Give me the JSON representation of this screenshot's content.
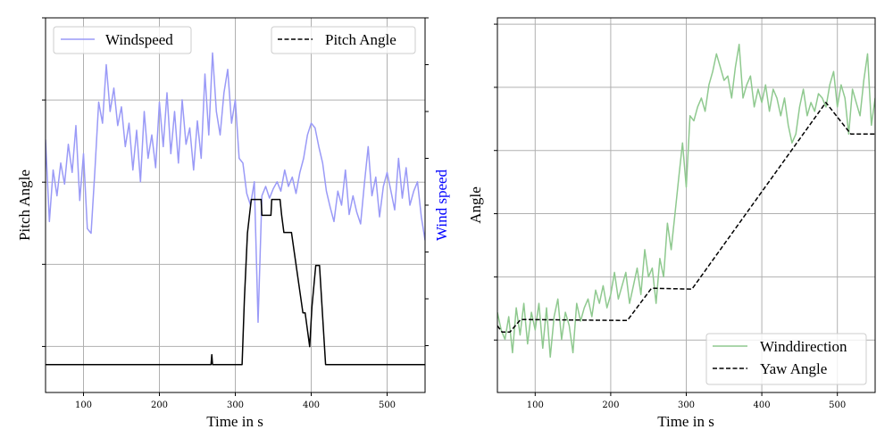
{
  "chart_data": [
    {
      "type": "line",
      "xlabel": "Time in s",
      "ylabel": "Pitch Angle",
      "ylabel_right": "Wind speed",
      "xlim": [
        50,
        550
      ],
      "xticks": [
        100,
        200,
        300,
        400,
        500
      ],
      "grid": true,
      "pitch_axis": {
        "ylim": [
          -1.7,
          21.1
        ],
        "ticks": [
          1.1,
          6.1,
          11.1,
          16.1,
          21.1
        ]
      },
      "wind_axis": {
        "ylim": [
          0,
          16
        ],
        "ticks": [
          2,
          4,
          6,
          8,
          10,
          12,
          14,
          16
        ]
      },
      "legend": [
        {
          "label": "Windspeed",
          "placement": "top-left"
        },
        {
          "label": "Pitch Angle",
          "placement": "top-right"
        }
      ],
      "series": [
        {
          "name": "Windspeed",
          "axis": "right",
          "color": "#9a9af7",
          "style": "solid",
          "x_start": 50,
          "x_step": 5,
          "values": [
            10.8,
            7.3,
            9.5,
            8.4,
            9.8,
            8.9,
            10.6,
            9.4,
            11.4,
            8.2,
            10.2,
            7.0,
            6.8,
            9.5,
            12.4,
            11.5,
            14.0,
            12.0,
            13.0,
            11.4,
            12.2,
            10.5,
            11.5,
            9.5,
            11.2,
            9.0,
            12.0,
            10.0,
            11.0,
            9.6,
            12.4,
            10.5,
            12.8,
            10.2,
            12.0,
            9.8,
            12.5,
            10.6,
            11.3,
            9.5,
            11.6,
            10.0,
            13.6,
            11.0,
            14.5,
            12.0,
            11.0,
            12.8,
            13.8,
            11.5,
            12.5,
            10.0,
            9.8,
            8.5,
            8.0,
            9.0,
            3.0,
            8.4,
            8.8,
            8.3,
            8.7,
            9.0,
            8.6,
            9.5,
            8.8,
            9.2,
            8.5,
            9.4,
            10.0,
            11.0,
            11.5,
            11.3,
            10.5,
            9.8,
            8.6,
            7.9,
            7.3,
            8.6,
            8.0,
            9.5,
            7.6,
            8.4,
            7.7,
            7.2,
            8.9,
            10.5,
            8.4,
            9.2,
            7.5,
            8.8,
            9.4,
            8.6,
            7.8,
            10.0,
            8.3,
            9.6,
            8.0,
            8.6,
            9.0,
            7.5,
            6.5
          ]
        },
        {
          "name": "Pitch Angle",
          "axis": "left",
          "color": "#000000",
          "style": "solid",
          "points": [
            [
              50,
              0
            ],
            [
              268,
              0
            ],
            [
              269,
              0.6
            ],
            [
              270,
              0
            ],
            [
              309,
              0
            ],
            [
              312,
              4
            ],
            [
              316,
              8
            ],
            [
              321,
              10.05
            ],
            [
              334,
              10.05
            ],
            [
              335,
              9.08
            ],
            [
              347,
              9.08
            ],
            [
              348,
              10.05
            ],
            [
              359,
              10.05
            ],
            [
              361,
              9.08
            ],
            [
              364,
              8.04
            ],
            [
              374,
              8.04
            ],
            [
              377,
              7.07
            ],
            [
              389,
              3.15
            ],
            [
              392,
              3.15
            ],
            [
              398,
              1.09
            ],
            [
              401,
              3.5
            ],
            [
              406,
              6.03
            ],
            [
              411,
              6.03
            ],
            [
              419,
              0
            ],
            [
              550,
              0
            ]
          ]
        }
      ]
    },
    {
      "type": "line",
      "xlabel": "Time in s",
      "ylabel": "Angle",
      "xlim": [
        50,
        550
      ],
      "ylim": [
        -8.3,
        51
      ],
      "xticks": [
        100,
        200,
        300,
        400,
        500
      ],
      "yticks": [
        0,
        10,
        20,
        30,
        40,
        50
      ],
      "grid": true,
      "legend": [
        {
          "label": "Winddirection",
          "placement": "bottom-right"
        },
        {
          "label": "Yaw Angle",
          "placement": "bottom-right"
        }
      ],
      "series": [
        {
          "name": "Winddirection",
          "color": "#8fc98f",
          "style": "solid",
          "x_start": 50,
          "x_step": 5,
          "values": [
            4.4,
            1.6,
            0.1,
            3.7,
            -2.0,
            5.1,
            0.8,
            5.8,
            -0.6,
            4.4,
            1.6,
            5.8,
            -1.3,
            5.1,
            -2.7,
            3.7,
            6.5,
            0.1,
            4.4,
            2.3,
            -2.0,
            5.8,
            3.0,
            5.1,
            6.5,
            3.7,
            7.9,
            5.8,
            8.6,
            5.1,
            7.2,
            10.7,
            6.5,
            8.6,
            10.7,
            5.8,
            8.6,
            11.4,
            7.2,
            14.3,
            10.0,
            11.4,
            5.8,
            12.9,
            10.0,
            18.5,
            14.3,
            19.9,
            25.6,
            31.2,
            24.2,
            35.5,
            34.7,
            36.9,
            38.3,
            36.2,
            40.4,
            42.5,
            45.3,
            43.2,
            41.1,
            41.8,
            38.3,
            43.2,
            46.8,
            38.3,
            40.4,
            41.8,
            36.9,
            39.7,
            37.6,
            40.4,
            36.2,
            39.7,
            38.3,
            35.5,
            38.3,
            34.0,
            31.2,
            32.6,
            36.9,
            39.7,
            35.5,
            37.6,
            36.2,
            39.0,
            38.3,
            36.9,
            40.4,
            42.5,
            36.9,
            40.4,
            38.3,
            32.6,
            39.7,
            37.6,
            35.5,
            41.1,
            45.3,
            34.0,
            38.3
          ]
        },
        {
          "name": "Yaw Angle",
          "color": "#000000",
          "style": "dashed",
          "points": [
            [
              50,
              2.26
            ],
            [
              56,
              1.27
            ],
            [
              66.5,
              1.27
            ],
            [
              80.7,
              3.25
            ],
            [
              222,
              3.1
            ],
            [
              254,
              8.2
            ],
            [
              307.5,
              8.05
            ],
            [
              484.7,
              37.6
            ],
            [
              517.8,
              32.6
            ],
            [
              550,
              32.6
            ]
          ]
        }
      ]
    }
  ]
}
